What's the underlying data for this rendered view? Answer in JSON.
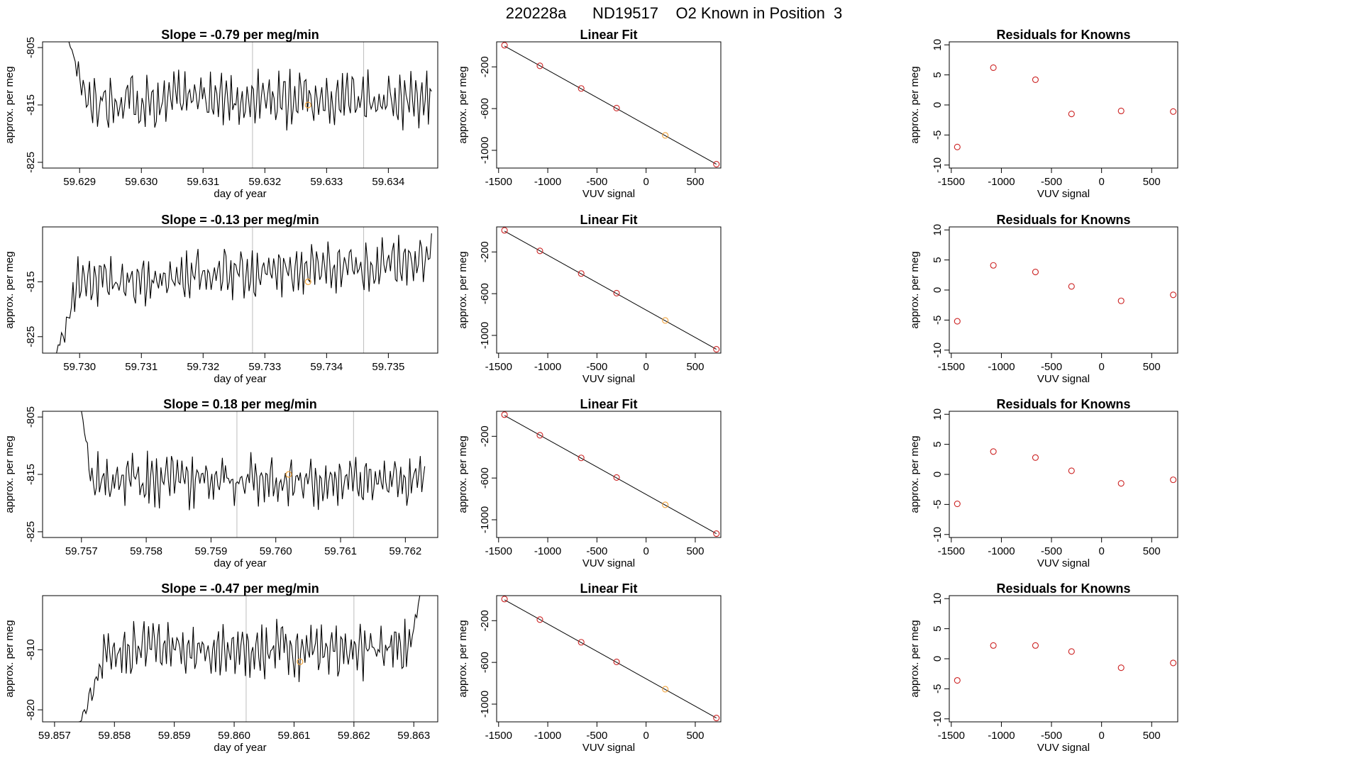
{
  "title": "220228a      ND19517    O2 Known in Position  3",
  "rows": [
    {
      "slope_title": "Slope =  -0.79  per meg/min",
      "ts": {
        "xlabel": "day of year",
        "ylabel": "approx. per meg",
        "xlim": [
          59.6284,
          59.6348
        ],
        "ylim": [
          -826,
          -804
        ],
        "xticks": [
          59.629,
          59.63,
          59.631,
          59.632,
          59.633,
          59.634
        ],
        "xtick_labels": [
          "59.629",
          "59.630",
          "59.631",
          "59.632",
          "59.633",
          "59.634"
        ],
        "yticks": [
          -805,
          -815,
          -825
        ],
        "ytick_labels": [
          "-805",
          "-815",
          "-825"
        ],
        "vlines": [
          59.6318,
          59.6336
        ],
        "marker": [
          59.6327,
          -815
        ],
        "t0": 59.6288,
        "t1": 59.6347,
        "seed": 11,
        "base": -814,
        "amp": 3.2,
        "start_level": -803,
        "settle": 0.05
      },
      "fit": {
        "title": "Linear Fit",
        "xlabel": "VUV signal",
        "ylabel": "approx. per meg",
        "x": [
          -1440,
          -1080,
          -660,
          -300,
          195,
          715
        ],
        "y": [
          7,
          -190,
          -407,
          -595,
          -857,
          -1133
        ],
        "fitline": [
          [
            -1440,
            0
          ],
          [
            715,
            -1133
          ]
        ],
        "highlight_index": 4
      },
      "resid": {
        "title": "Residuals for Knowns",
        "xlabel": "VUV signal",
        "ylabel": "approx. per meg",
        "x": [
          -1440,
          -1080,
          -660,
          -300,
          195,
          715
        ],
        "y": [
          -7.0,
          6.2,
          4.2,
          -1.5,
          -1.0,
          -1.1
        ]
      }
    },
    {
      "slope_title": "Slope =  -0.13  per meg/min",
      "ts": {
        "xlabel": "day of year",
        "ylabel": "approx. per meg",
        "xlim": [
          59.7294,
          59.7358
        ],
        "ylim": [
          -828,
          -805
        ],
        "xticks": [
          59.73,
          59.731,
          59.732,
          59.733,
          59.734,
          59.735
        ],
        "xtick_labels": [
          "59.730",
          "59.731",
          "59.732",
          "59.733",
          "59.734",
          "59.735"
        ],
        "yticks": [
          -815,
          -825
        ],
        "ytick_labels": [
          "-815",
          "-825"
        ],
        "vlines": [
          59.7328,
          59.7346
        ],
        "marker": [
          59.7337,
          -815
        ],
        "t0": 59.7296,
        "t1": 59.7357,
        "seed": 23,
        "base": -816,
        "amp": 3.0,
        "start_level": -829,
        "settle": 0.06,
        "drift": 5
      },
      "fit": {
        "title": "Linear Fit",
        "xlabel": "VUV signal",
        "ylabel": "approx. per meg",
        "x": [
          -1440,
          -1080,
          -660,
          -300,
          195,
          715
        ],
        "y": [
          7,
          -190,
          -407,
          -595,
          -857,
          -1133
        ],
        "fitline": [
          [
            -1440,
            0
          ],
          [
            715,
            -1133
          ]
        ],
        "highlight_index": 4
      },
      "resid": {
        "title": "Residuals for Knowns",
        "xlabel": "VUV signal",
        "ylabel": "approx. per meg",
        "x": [
          -1440,
          -1080,
          -660,
          -300,
          195,
          715
        ],
        "y": [
          -5.2,
          4.1,
          3.0,
          0.6,
          -1.8,
          -0.8
        ]
      }
    },
    {
      "slope_title": "Slope =  0.18  per meg/min",
      "ts": {
        "xlabel": "day of year",
        "ylabel": "approx. per meg",
        "xlim": [
          59.7564,
          59.7625
        ],
        "ylim": [
          -826,
          -804
        ],
        "xticks": [
          59.757,
          59.758,
          59.759,
          59.76,
          59.761,
          59.762
        ],
        "xtick_labels": [
          "59.757",
          "59.758",
          "59.759",
          "59.760",
          "59.761",
          "59.762"
        ],
        "yticks": [
          -805,
          -815,
          -825
        ],
        "ytick_labels": [
          "-805",
          "-815",
          "-825"
        ],
        "vlines": [
          59.7594,
          59.7612
        ],
        "marker": [
          59.7602,
          -815
        ],
        "t0": 59.757,
        "t1": 59.7623,
        "seed": 37,
        "base": -816,
        "amp": 3.0,
        "start_level": -804,
        "settle": 0.03
      },
      "fit": {
        "title": "Linear Fit",
        "xlabel": "VUV signal",
        "ylabel": "approx. per meg",
        "x": [
          -1440,
          -1080,
          -660,
          -300,
          195,
          715
        ],
        "y": [
          7,
          -190,
          -407,
          -595,
          -857,
          -1133
        ],
        "fitline": [
          [
            -1440,
            0
          ],
          [
            715,
            -1133
          ]
        ],
        "highlight_index": 4
      },
      "resid": {
        "title": "Residuals for Knowns",
        "xlabel": "VUV signal",
        "ylabel": "approx. per meg",
        "x": [
          -1440,
          -1080,
          -660,
          -300,
          195,
          715
        ],
        "y": [
          -4.9,
          3.8,
          2.8,
          0.6,
          -1.5,
          -0.9
        ]
      }
    },
    {
      "slope_title": "Slope =  -0.47  per meg/min",
      "ts": {
        "xlabel": "day of year",
        "ylabel": "approx. per meg",
        "xlim": [
          59.8568,
          59.8634
        ],
        "ylim": [
          -822,
          -801
        ],
        "xticks": [
          59.857,
          59.858,
          59.859,
          59.86,
          59.861,
          59.862,
          59.863
        ],
        "xtick_labels": [
          "59.857",
          "59.858",
          "59.859",
          "59.860",
          "59.861",
          "59.862",
          "59.863"
        ],
        "yticks": [
          -810,
          -820
        ],
        "ytick_labels": [
          "-810",
          "-820"
        ],
        "vlines": [
          59.8602,
          59.862
        ],
        "marker": [
          59.8611,
          -812
        ],
        "t0": 59.8574,
        "t1": 59.8631,
        "seed": 53,
        "base": -810,
        "amp": 3.0,
        "start_level": -823,
        "settle": 0.08,
        "end_level": -801
      },
      "fit": {
        "title": "Linear Fit",
        "xlabel": "VUV signal",
        "ylabel": "approx. per meg",
        "x": [
          -1440,
          -1080,
          -660,
          -300,
          195,
          715
        ],
        "y": [
          7,
          -190,
          -407,
          -595,
          -857,
          -1133
        ],
        "fitline": [
          [
            -1440,
            0
          ],
          [
            715,
            -1133
          ]
        ],
        "highlight_index": 4
      },
      "resid": {
        "title": "Residuals for Knowns",
        "xlabel": "VUV signal",
        "ylabel": "approx. per meg",
        "x": [
          -1440,
          -1080,
          -660,
          -300,
          195,
          715
        ],
        "y": [
          -3.6,
          2.2,
          2.2,
          1.2,
          -1.5,
          -0.7
        ]
      }
    }
  ],
  "fit_axes": {
    "xlim": [
      -1520,
      760
    ],
    "ylim": [
      -1170,
      40
    ],
    "xticks": [
      -1500,
      -1000,
      -500,
      0,
      500
    ],
    "xtick_labels": [
      "-1500",
      "-1000",
      "-500",
      "0",
      "500"
    ],
    "yticks": [
      -200,
      -600,
      -1000
    ],
    "ytick_labels": [
      "-200",
      "-600",
      "-1000"
    ]
  },
  "resid_axes": {
    "xlim": [
      -1520,
      760
    ],
    "ylim": [
      -10.5,
      10.5
    ],
    "xticks": [
      -1500,
      -1000,
      -500,
      0,
      500
    ],
    "xtick_labels": [
      "-1500",
      "-1000",
      "-500",
      "0",
      "500"
    ],
    "yticks": [
      10,
      5,
      0,
      -5,
      -10
    ],
    "ytick_labels": [
      "10",
      "5",
      "0",
      "-5",
      "-10"
    ]
  },
  "colors": {
    "line": "#000000",
    "vline": "#bdbdbd",
    "point": "#cc2222",
    "highlight": "#f2a33a",
    "marker": "#f2a33a"
  },
  "chart_data": [
    {
      "type": "line",
      "title": "Slope =  -0.79  per meg/min",
      "xlabel": "day of year",
      "ylabel": "approx. per meg",
      "xlim": [
        59.6284,
        59.6348
      ],
      "ylim": [
        -826,
        -804
      ]
    },
    {
      "type": "scatter",
      "title": "Linear Fit",
      "xlabel": "VUV signal",
      "ylabel": "approx. per meg",
      "x": [
        -1440,
        -1080,
        -660,
        -300,
        195,
        715
      ],
      "y": [
        7,
        -190,
        -407,
        -595,
        -857,
        -1133
      ]
    },
    {
      "type": "scatter",
      "title": "Residuals for Knowns",
      "xlabel": "VUV signal",
      "ylabel": "approx. per meg",
      "x": [
        -1440,
        -1080,
        -660,
        -300,
        195,
        715
      ],
      "y": [
        -7.0,
        6.2,
        4.2,
        -1.5,
        -1.0,
        -1.1
      ]
    },
    {
      "type": "line",
      "title": "Slope =  -0.13  per meg/min",
      "xlabel": "day of year",
      "ylabel": "approx. per meg",
      "xlim": [
        59.7294,
        59.7358
      ],
      "ylim": [
        -828,
        -805
      ]
    },
    {
      "type": "scatter",
      "title": "Linear Fit",
      "x": [
        -1440,
        -1080,
        -660,
        -300,
        195,
        715
      ],
      "y": [
        7,
        -190,
        -407,
        -595,
        -857,
        -1133
      ]
    },
    {
      "type": "scatter",
      "title": "Residuals for Knowns",
      "x": [
        -1440,
        -1080,
        -660,
        -300,
        195,
        715
      ],
      "y": [
        -5.2,
        4.1,
        3.0,
        0.6,
        -1.8,
        -0.8
      ]
    },
    {
      "type": "line",
      "title": "Slope =  0.18  per meg/min",
      "xlabel": "day of year",
      "ylabel": "approx. per meg",
      "xlim": [
        59.7564,
        59.7625
      ],
      "ylim": [
        -826,
        -804
      ]
    },
    {
      "type": "scatter",
      "title": "Linear Fit",
      "x": [
        -1440,
        -1080,
        -660,
        -300,
        195,
        715
      ],
      "y": [
        7,
        -190,
        -407,
        -595,
        -857,
        -1133
      ]
    },
    {
      "type": "scatter",
      "title": "Residuals for Knowns",
      "x": [
        -1440,
        -1080,
        -660,
        -300,
        195,
        715
      ],
      "y": [
        -4.9,
        3.8,
        2.8,
        0.6,
        -1.5,
        -0.9
      ]
    },
    {
      "type": "line",
      "title": "Slope =  -0.47  per meg/min",
      "xlabel": "day of year",
      "ylabel": "approx. per meg",
      "xlim": [
        59.8568,
        59.8634
      ],
      "ylim": [
        -822,
        -801
      ]
    },
    {
      "type": "scatter",
      "title": "Linear Fit",
      "x": [
        -1440,
        -1080,
        -660,
        -300,
        195,
        715
      ],
      "y": [
        7,
        -190,
        -407,
        -595,
        -857,
        -1133
      ]
    },
    {
      "type": "scatter",
      "title": "Residuals for Knowns",
      "x": [
        -1440,
        -1080,
        -660,
        -300,
        195,
        715
      ],
      "y": [
        -3.6,
        2.2,
        2.2,
        1.2,
        -1.5,
        -0.7
      ]
    }
  ]
}
